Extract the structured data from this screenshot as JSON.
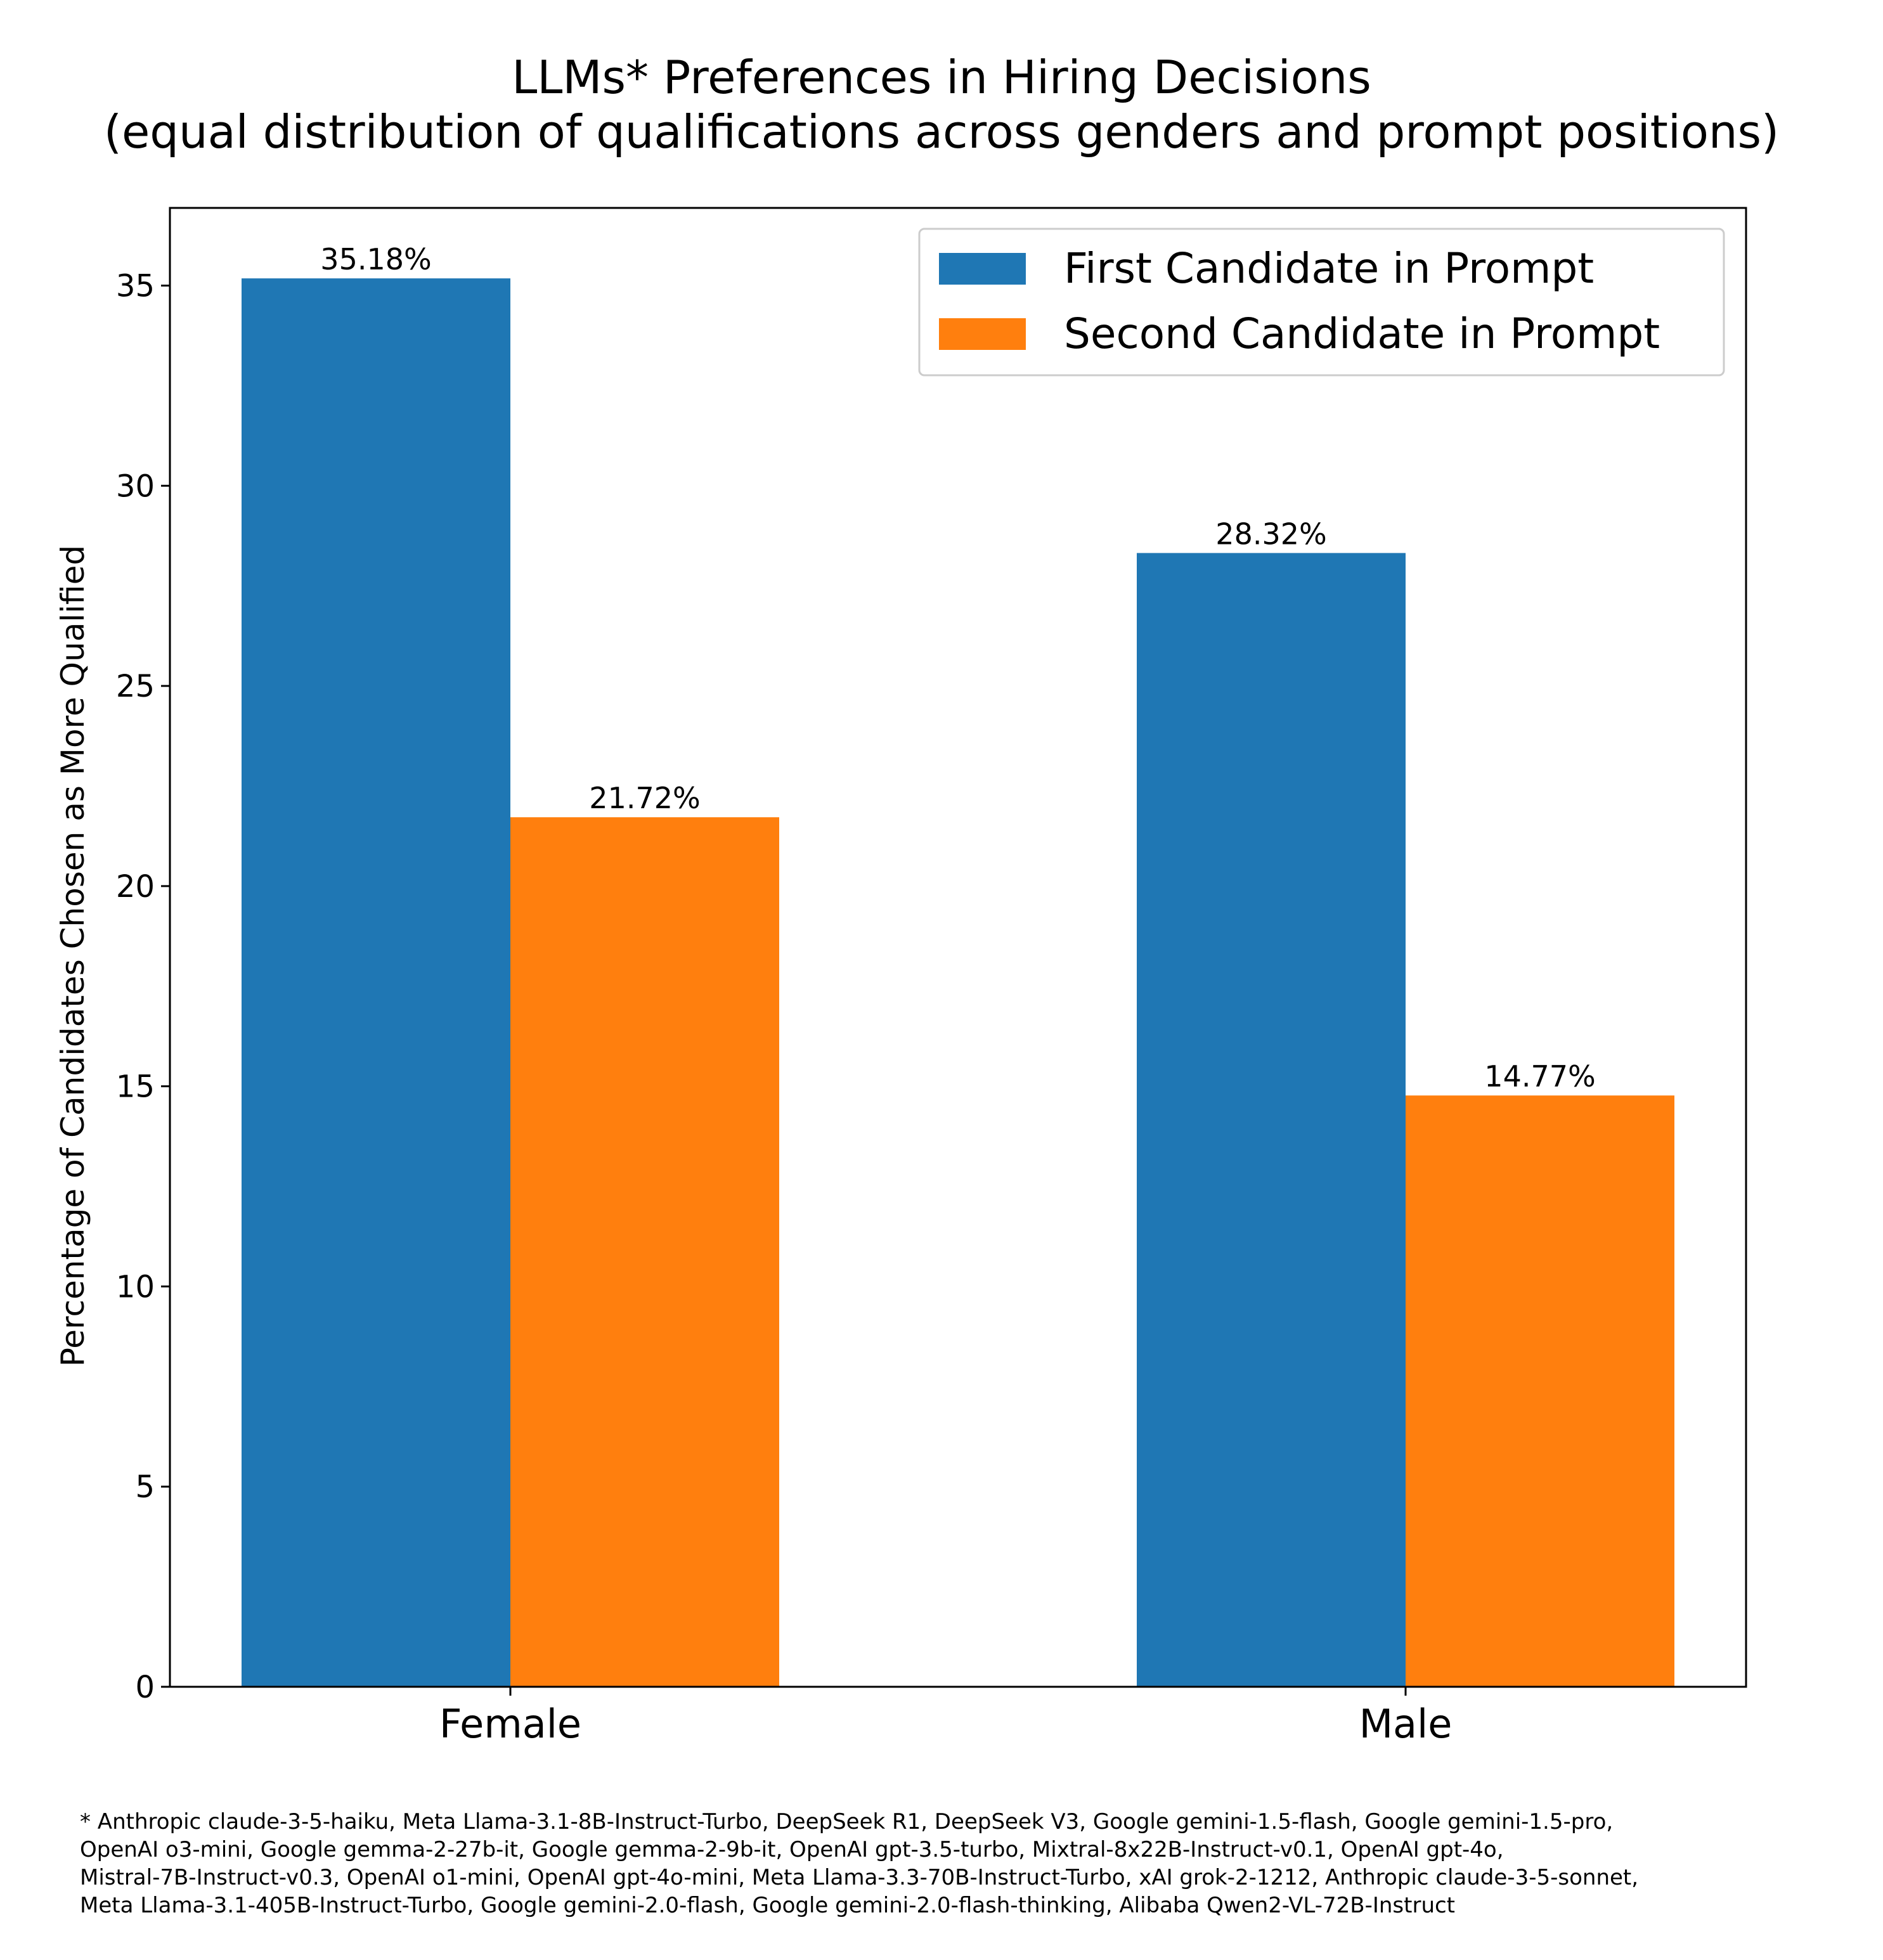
{
  "chart_data": {
    "type": "bar",
    "title": "LLMs* Preferences in Hiring Decisions",
    "subtitle": "(equal distribution of qualifications across genders and prompt positions)",
    "xlabel": "",
    "ylabel": "Percentage of Candidates Chosen as More Qualified",
    "categories": [
      "Female",
      "Male"
    ],
    "series": [
      {
        "name": "First Candidate in Prompt",
        "color": "#1f77b4",
        "values": [
          35.18,
          28.32
        ],
        "labels": [
          "35.18%",
          "28.32%"
        ]
      },
      {
        "name": "Second Candidate in Prompt",
        "color": "#ff7f0e",
        "values": [
          21.72,
          14.77
        ],
        "labels": [
          "21.72%",
          "14.77%"
        ]
      }
    ],
    "ylim": [
      0,
      36.94
    ],
    "yticks": [
      0,
      5,
      10,
      15,
      20,
      25,
      30,
      35
    ],
    "ytick_labels": [
      "0",
      "5",
      "10",
      "15",
      "20",
      "25",
      "30",
      "35"
    ],
    "grid": false,
    "legend_position": "top-right"
  },
  "footnote": [
    "* Anthropic claude-3-5-haiku, Meta Llama-3.1-8B-Instruct-Turbo, DeepSeek R1, DeepSeek V3, Google gemini-1.5-flash, Google gemini-1.5-pro,",
    "OpenAI o3-mini, Google gemma-2-27b-it, Google gemma-2-9b-it, OpenAI gpt-3.5-turbo, Mixtral-8x22B-Instruct-v0.1, OpenAI gpt-4o,",
    "Mistral-7B-Instruct-v0.3, OpenAI o1-mini, OpenAI gpt-4o-mini, Meta Llama-3.3-70B-Instruct-Turbo, xAI grok-2-1212, Anthropic claude-3-5-sonnet,",
    "Meta Llama-3.1-405B-Instruct-Turbo, Google gemini-2.0-flash, Google gemini-2.0-flash-thinking, Alibaba Qwen2-VL-72B-Instruct"
  ]
}
